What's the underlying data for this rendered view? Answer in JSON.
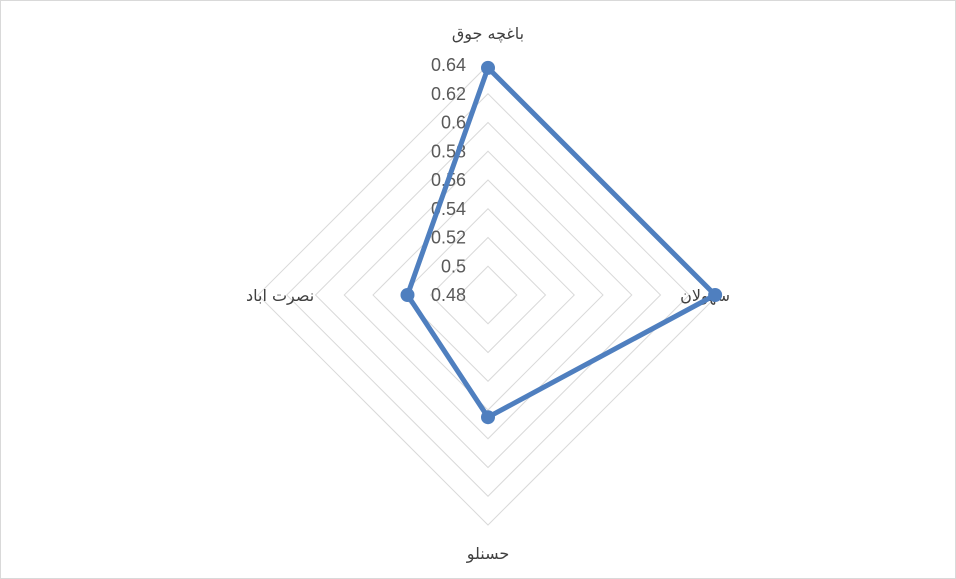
{
  "chart_data": {
    "type": "radar",
    "title": "",
    "categories": [
      "باغچه جوق",
      "سهولان",
      "حسنلو",
      "نصرت اباد"
    ],
    "series": [
      {
        "values": [
          0.638,
          0.638,
          0.565,
          0.536
        ],
        "color": "#4f7fbf"
      }
    ],
    "rlim": [
      0.48,
      0.64
    ],
    "ticks": [
      "0.48",
      "0.5",
      "0.52",
      "0.54",
      "0.56",
      "0.58",
      "0.6",
      "0.62",
      "0.64"
    ],
    "grid": true,
    "legend": "none"
  }
}
